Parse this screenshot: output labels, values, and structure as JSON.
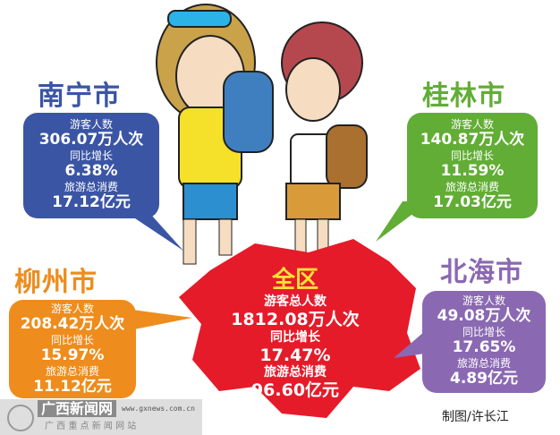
{
  "colors": {
    "nanning": "#3b55a5",
    "guilin": "#62ad35",
    "liuzhou": "#ee8c1d",
    "beihai": "#8a69b2",
    "region": "#e51b2a",
    "region_title": "#ffe23a"
  },
  "cities": [
    {
      "name": "南宁市",
      "visitors_label": "游客人数",
      "visitors": "306.07万人次",
      "growth_label": "同比增长",
      "growth": "6.38%",
      "spend_label": "旅游总消费",
      "spend": "17.12亿元"
    },
    {
      "name": "桂林市",
      "visitors_label": "游客人数",
      "visitors": "140.87万人次",
      "growth_label": "同比增长",
      "growth": "11.59%",
      "spend_label": "旅游总消费",
      "spend": "17.03亿元"
    },
    {
      "name": "柳州市",
      "visitors_label": "游客人数",
      "visitors": "208.42万人次",
      "growth_label": "同比增长",
      "growth": "15.97%",
      "spend_label": "旅游总消费",
      "spend": "11.12亿元"
    },
    {
      "name": "北海市",
      "visitors_label": "游客人数",
      "visitors": "49.08万人次",
      "growth_label": "同比增长",
      "growth": "17.65%",
      "spend_label": "旅游总消费",
      "spend": "4.89亿元"
    }
  ],
  "region": {
    "name": "全区",
    "visitors_label": "游客总人数",
    "visitors": "1812.08万人次",
    "growth_label": "同比增长",
    "growth": "17.47%",
    "spend_label": "旅游总消费",
    "spend": "96.60亿元"
  },
  "watermark": {
    "name": "广西新闻网",
    "url": "www.gxnews.com.cn",
    "subtitle": "广 西 重 点 新 闻 网 站"
  },
  "credit": "制图/许长江"
}
